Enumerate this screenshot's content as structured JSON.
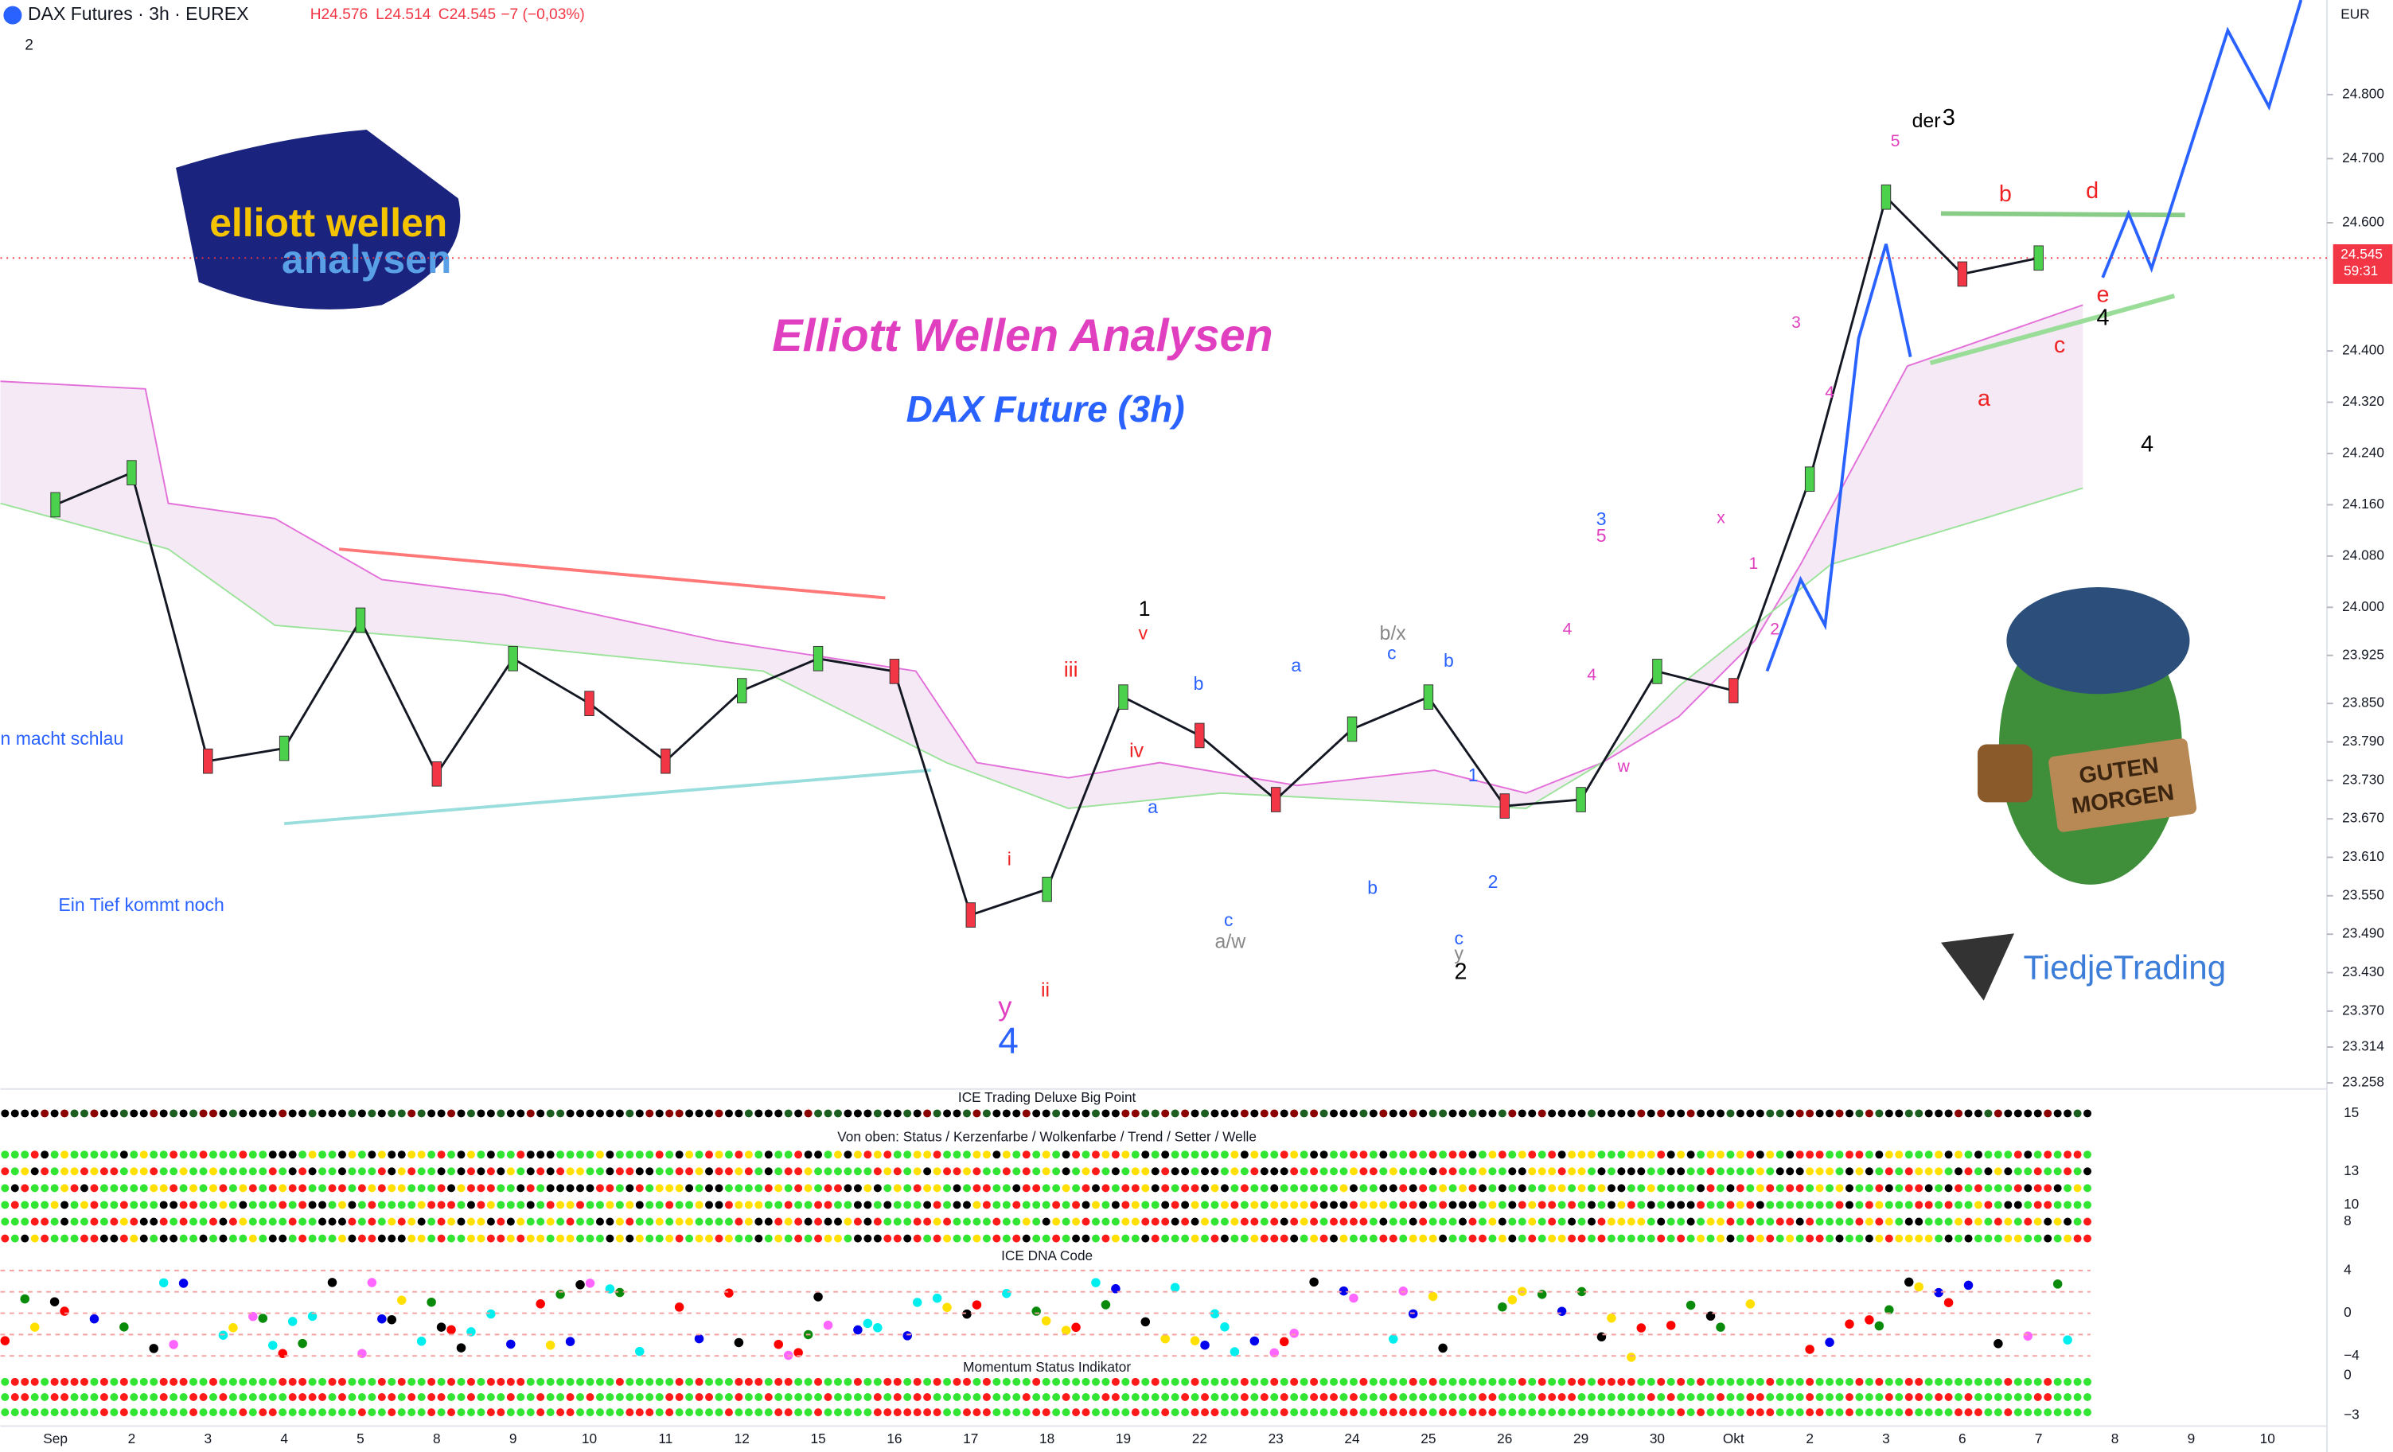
{
  "header": {
    "symbol": "DAX Futures · 3h · EUREX",
    "high": "H24.576",
    "low": "L24.514",
    "close": "C24.545",
    "change": "−7 (−0,03%)",
    "pane_count": "2"
  },
  "price_axis": {
    "currency": "EUR",
    "ticks": [
      {
        "value": 24800,
        "label": "24.800"
      },
      {
        "value": 24700,
        "label": "24.700"
      },
      {
        "value": 24600,
        "label": "24.600"
      },
      {
        "value": 24400,
        "label": "24.400"
      },
      {
        "value": 24320,
        "label": "24.320"
      },
      {
        "value": 24240,
        "label": "24.240"
      },
      {
        "value": 24160,
        "label": "24.160"
      },
      {
        "value": 24080,
        "label": "24.080"
      },
      {
        "value": 24000,
        "label": "24.000"
      },
      {
        "value": 23925,
        "label": "23.925"
      },
      {
        "value": 23850,
        "label": "23.850"
      },
      {
        "value": 23790,
        "label": "23.790"
      },
      {
        "value": 23730,
        "label": "23.730"
      },
      {
        "value": 23670,
        "label": "23.670"
      },
      {
        "value": 23610,
        "label": "23.610"
      },
      {
        "value": 23550,
        "label": "23.550"
      },
      {
        "value": 23490,
        "label": "23.490"
      },
      {
        "value": 23430,
        "label": "23.430"
      },
      {
        "value": 23370,
        "label": "23.370"
      },
      {
        "value": 23314,
        "label": "23.314"
      },
      {
        "value": 23258,
        "label": "23.258"
      }
    ],
    "last_price": {
      "value": 24545,
      "label": "24.545"
    },
    "countdown": "59:31"
  },
  "close_path": {
    "values": [
      24160,
      24210,
      23760,
      23780,
      23980,
      23740,
      23920,
      23850,
      23760,
      23870,
      23920,
      23900,
      23520,
      23560,
      23860,
      23800,
      23700,
      23810,
      23860,
      23690,
      23700,
      23900,
      23870,
      24200,
      24640,
      24520,
      24545
    ]
  },
  "date_axis": [
    "Sep",
    "2",
    "3",
    "4",
    "5",
    "8",
    "9",
    "10",
    "11",
    "12",
    "15",
    "16",
    "17",
    "18",
    "19",
    "22",
    "23",
    "24",
    "25",
    "26",
    "29",
    "30",
    "Okt",
    "2",
    "3",
    "6",
    "7",
    "8",
    "9",
    "10"
  ],
  "titles": {
    "main": "Elliott Wellen Analysen",
    "sub": "DAX Future (3h)",
    "logo_top": "elliott wellen",
    "logo_bottom": "analysen",
    "brand": "TiedjeTrading",
    "sign_1": "GUTEN",
    "sign_2": "MORGEN"
  },
  "annotations": [
    "n macht schlau",
    "Ein Tief kommt noch",
    "1",
    "v",
    "iii",
    "iv",
    "i",
    "ii",
    "y",
    "4",
    "a",
    "b",
    "c",
    "a/w",
    "b/x",
    "c",
    "b",
    "a",
    "b",
    "c",
    "y",
    "2",
    "1",
    "2",
    "3",
    "5",
    "4",
    "w",
    "x",
    "1",
    "2",
    "4",
    "3",
    "4",
    "5",
    "der",
    "3",
    "b",
    "a",
    "c",
    "d",
    "e",
    "4",
    "4"
  ],
  "panes": [
    {
      "title": "ICE Trading Deluxe Big Point",
      "ticks": [
        "15"
      ]
    },
    {
      "title": "Von oben: Status / Kerzenfarbe / Wolkenfarbe / Trend / Setter / Welle",
      "ticks": [
        "13",
        "10",
        "8"
      ]
    },
    {
      "title": "ICE DNA Code",
      "ticks": [
        "4",
        "0",
        "−4"
      ]
    },
    {
      "title": "Momentum Status Indikator",
      "ticks": [
        "0",
        "−3"
      ]
    }
  ]
}
